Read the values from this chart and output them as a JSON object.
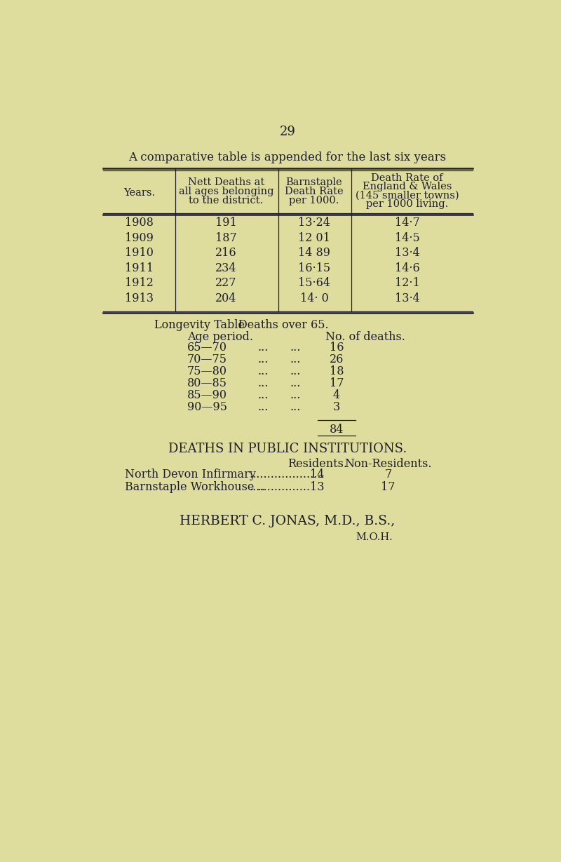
{
  "bg_color": "#dedd9e",
  "text_color": "#1e1e2e",
  "page_number": "29",
  "title": "A comparative table is appended for the last six years",
  "table1_col0_header": "Years.",
  "table1_col1_header_lines": [
    "Nett Deaths at",
    "all ages belonging",
    "to the district."
  ],
  "table1_col2_header_lines": [
    "Barnstaple",
    "Death Rate",
    "per 1000."
  ],
  "table1_col3_header_lines": [
    "Death Rate of",
    "England & Wales",
    "(145 smaller towns)",
    "per 1000 living."
  ],
  "table1_data": [
    [
      "1908",
      "191",
      "13·24",
      "14·7"
    ],
    [
      "1909",
      "187",
      "12 01",
      "14·5"
    ],
    [
      "1910",
      "216",
      "14 89",
      "13·4"
    ],
    [
      "1911",
      "234",
      "16·15",
      "14·6"
    ],
    [
      "1912",
      "227",
      "15·64",
      "12·1"
    ],
    [
      "1913",
      "204",
      "14· 0",
      "13·4"
    ]
  ],
  "longevity_title_left": "Longevity Table",
  "longevity_title_right": "Deaths over 65.",
  "longevity_col1_header": "Age period.",
  "longevity_col2_header": "No. of deaths.",
  "longevity_data": [
    [
      "65—70",
      "16"
    ],
    [
      "70—75",
      "26"
    ],
    [
      "75—80",
      "18"
    ],
    [
      "80—85",
      "17"
    ],
    [
      "85—90",
      "4"
    ],
    [
      "90—95",
      "3"
    ]
  ],
  "longevity_total": "84",
  "institutions_title": "DEATHS IN PUBLIC INSTITUTIONS.",
  "institutions_col1_header": "Residents.",
  "institutions_col2_header": "Non-Residents.",
  "institutions_row1_label": "North Devon Infirmary",
  "institutions_row1_dots": ".....................",
  "institutions_row1_res": "14",
  "institutions_row1_nonres": "7",
  "institutions_row2_label": "Barnstaple Workhouse ..",
  "institutions_row2_dots": ".................",
  "institutions_row2_res": "13",
  "institutions_row2_nonres": "17",
  "signature": "HERBERT C. JONAS, M.D., B.S.,",
  "signature_sub": "M.O.H."
}
